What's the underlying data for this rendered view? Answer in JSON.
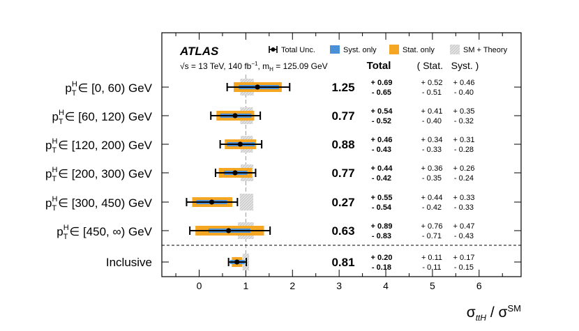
{
  "chart_data": {
    "type": "scatter",
    "subtype": "forest-plot",
    "experiment": "ATLAS",
    "info_line": "√s = 13 TeV, 140 fb⁻¹, mH = 125.09 GeV",
    "info_parts": {
      "sqrt": "√",
      "s_eq": "s = 13 TeV, 140 fb",
      "lumi_exp": "−1",
      "sep": ", m",
      "mass_sub": "H",
      "mass_val": " = 125.09 GeV"
    },
    "legend": [
      {
        "name": "Total Unc.",
        "kind": "errorbar"
      },
      {
        "name": "Syst. only",
        "kind": "box",
        "color": "#4a90d9"
      },
      {
        "name": "Stat. only",
        "kind": "box",
        "color": "#f5a623"
      },
      {
        "name": "SM + Theory",
        "kind": "hatch",
        "color": "#cccccc"
      }
    ],
    "column_headers": {
      "total": "Total",
      "stat_syst": "( Stat.   Syst. )"
    },
    "xlabel": "σ_ttH / σ^SM",
    "xlabel_parts": {
      "sigma": "σ",
      "sub": "ttH",
      "slash": " / σ",
      "sup": "SM"
    },
    "xlim": [
      -0.8,
      6.9
    ],
    "x_ticks": [
      0,
      1,
      2,
      3,
      4,
      5,
      6
    ],
    "x_tick_labels": [
      "0",
      "1",
      "2",
      "3",
      "4",
      "5",
      "6"
    ],
    "sm_reference": 1.0,
    "bins": [
      {
        "label": "pTH ∈ [0, 60) GeV",
        "range": "∈ [0, 60) GeV",
        "value": 1.25,
        "value_text": "1.25",
        "total_up": "+ 0.69",
        "total_down": "- 0.65",
        "stat_up": "+ 0.52",
        "stat_down": "- 0.51",
        "syst_up": "+ 0.46",
        "syst_down": "- 0.40",
        "tu": 0.69,
        "td": 0.65,
        "su": 0.52,
        "sd": 0.51,
        "yu": 0.46,
        "yd": 0.4,
        "sm_lo": 0.88,
        "sm_hi": 1.17
      },
      {
        "label": "pTH ∈ [60, 120) GeV",
        "range": "∈ [60, 120) GeV",
        "value": 0.77,
        "value_text": "0.77",
        "total_up": "+ 0.54",
        "total_down": "- 0.52",
        "stat_up": "+ 0.41",
        "stat_down": "- 0.40",
        "syst_up": "+ 0.35",
        "syst_down": "- 0.32",
        "tu": 0.54,
        "td": 0.52,
        "su": 0.41,
        "sd": 0.4,
        "yu": 0.35,
        "yd": 0.32,
        "sm_lo": 0.88,
        "sm_hi": 1.15
      },
      {
        "label": "pTH ∈ [120, 200) GeV",
        "range": "∈ [120, 200) GeV",
        "value": 0.88,
        "value_text": "0.88",
        "total_up": "+ 0.46",
        "total_down": "- 0.43",
        "stat_up": "+ 0.34",
        "stat_down": "- 0.33",
        "syst_up": "+ 0.31",
        "syst_down": "- 0.28",
        "tu": 0.46,
        "td": 0.43,
        "su": 0.34,
        "sd": 0.33,
        "yu": 0.31,
        "yd": 0.28,
        "sm_lo": 0.89,
        "sm_hi": 1.15
      },
      {
        "label": "pTH ∈ [200, 300) GeV",
        "range": "∈ [200, 300) GeV",
        "value": 0.77,
        "value_text": "0.77",
        "total_up": "+ 0.44",
        "total_down": "- 0.42",
        "stat_up": "+ 0.36",
        "stat_down": "- 0.35",
        "syst_up": "+ 0.26",
        "syst_down": "- 0.24",
        "tu": 0.44,
        "td": 0.42,
        "su": 0.36,
        "sd": 0.35,
        "yu": 0.26,
        "yd": 0.24,
        "sm_lo": 0.89,
        "sm_hi": 1.16
      },
      {
        "label": "pTH ∈ [300, 450) GeV",
        "range": "∈ [300, 450) GeV",
        "value": 0.27,
        "value_text": "0.27",
        "total_up": "+ 0.55",
        "total_down": "- 0.54",
        "stat_up": "+ 0.44",
        "stat_down": "- 0.42",
        "syst_up": "+ 0.33",
        "syst_down": "- 0.33",
        "tu": 0.55,
        "td": 0.54,
        "su": 0.44,
        "sd": 0.42,
        "yu": 0.33,
        "yd": 0.33,
        "sm_lo": 0.87,
        "sm_hi": 1.16
      },
      {
        "label": "pTH ∈ [450, ∞) GeV",
        "range": "∈ [450, ∞) GeV",
        "value": 0.63,
        "value_text": "0.63",
        "total_up": "+ 0.89",
        "total_down": "- 0.83",
        "stat_up": "+ 0.76",
        "stat_down": "- 0.71",
        "syst_up": "+ 0.47",
        "syst_down": "- 0.43",
        "tu": 0.89,
        "td": 0.83,
        "su": 0.76,
        "sd": 0.71,
        "yu": 0.47,
        "yd": 0.43,
        "sm_lo": 0.83,
        "sm_hi": 1.17
      }
    ],
    "inclusive": {
      "label": "Inclusive",
      "value": 0.81,
      "value_text": "0.81",
      "total_up": "+ 0.20",
      "total_down": "- 0.18",
      "stat_up": "+ 0.11",
      "stat_down": "- 0.11",
      "syst_up": "+ 0.17",
      "syst_down": "- 0.15",
      "tu": 0.2,
      "td": 0.18,
      "su": 0.11,
      "sd": 0.11,
      "yu": 0.17,
      "yd": 0.15,
      "sm_lo": 0.93,
      "sm_hi": 1.07
    },
    "label_prefix": {
      "p": "p",
      "sup": "H",
      "sub": "T"
    }
  },
  "colors": {
    "stat": "#f5a623",
    "syst": "#4a90d9",
    "sm_fill": "#e2e2e2",
    "sm_hatch": "#b5b5b5",
    "total": "#000000",
    "ref_line": "#999999"
  }
}
